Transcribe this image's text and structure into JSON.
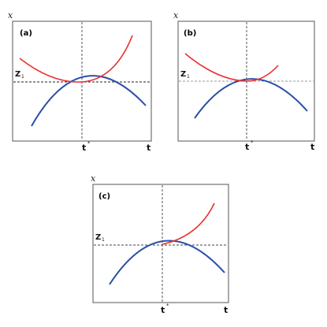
{
  "panels": [
    {
      "id": "a",
      "label": "(a)",
      "y_axis_letter": "x",
      "z_label": "Z",
      "z_sub": "1",
      "tstar_label": "t",
      "tstar_sup": "*",
      "t_label": "t",
      "colors": {
        "upper": "#e8302e",
        "lower": "#2b4fa8",
        "threshold": "#222222",
        "frame": "#555555"
      }
    },
    {
      "id": "b",
      "label": "(b)",
      "y_axis_letter": "x",
      "z_label": "Z",
      "z_sub": "1",
      "tstar_label": "t",
      "tstar_sup": "*",
      "t_label": "t",
      "colors": {
        "upper": "#e8302e",
        "lower": "#2b4fa8",
        "threshold": "#777777",
        "frame": "#555555"
      }
    },
    {
      "id": "c",
      "label": "(c)",
      "y_axis_letter": "x",
      "z_label": "Z",
      "z_sub": "1",
      "tstar_label": "t",
      "tstar_sup": "*",
      "t_label": "t",
      "colors": {
        "upper": "#e8302e",
        "lower": "#2b4fa8",
        "threshold": "#444444",
        "frame": "#555555"
      }
    }
  ]
}
